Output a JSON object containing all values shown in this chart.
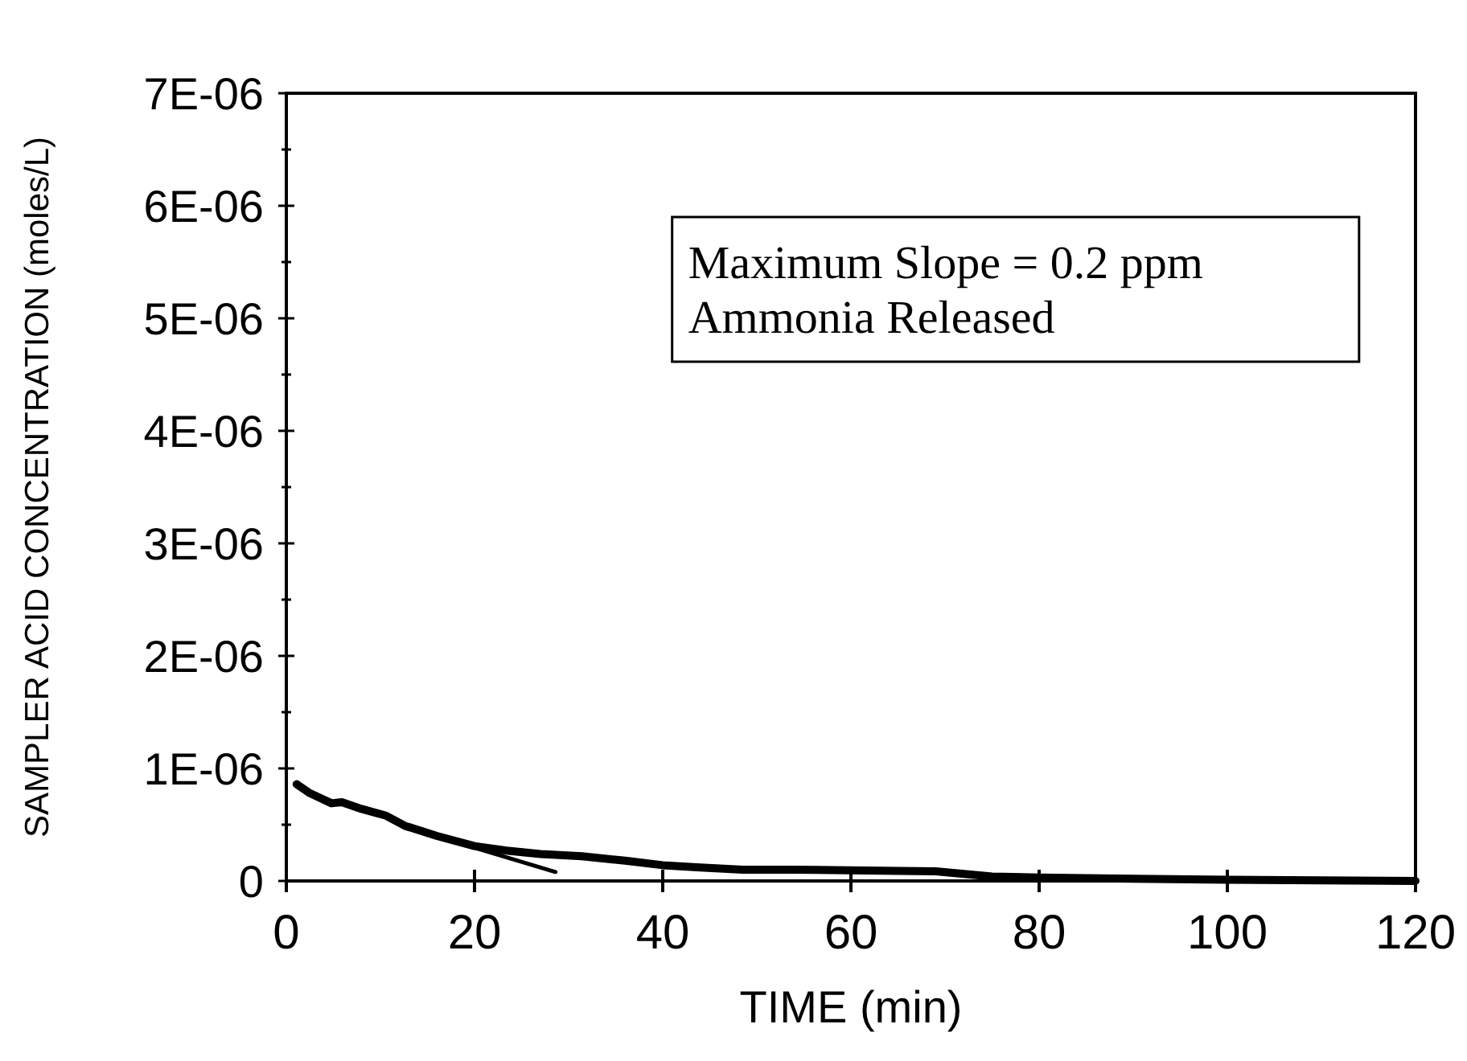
{
  "chart_data": {
    "type": "line",
    "xlabel": "TIME (min)",
    "ylabel": "SAMPLER ACID CONCENTRATION (moles/L)",
    "xlim": [
      0,
      120
    ],
    "xticks": [
      0,
      20,
      40,
      60,
      80,
      100,
      120
    ],
    "ylim": [
      0,
      7e-06
    ],
    "yticks": [
      {
        "value": 0,
        "label": "0"
      },
      {
        "value": 5e-07,
        "label": null
      },
      {
        "value": 1e-06,
        "label": "1E-06"
      },
      {
        "value": 1.5e-06,
        "label": null
      },
      {
        "value": 2e-06,
        "label": "2E-06"
      },
      {
        "value": 2.5e-06,
        "label": null
      },
      {
        "value": 3e-06,
        "label": "3E-06"
      },
      {
        "value": 3.5e-06,
        "label": null
      },
      {
        "value": 4e-06,
        "label": "4E-06"
      },
      {
        "value": 4.5e-06,
        "label": null
      },
      {
        "value": 5e-06,
        "label": "5E-06"
      },
      {
        "value": 5.5e-06,
        "label": null
      },
      {
        "value": 6e-06,
        "label": "6E-06"
      },
      {
        "value": 6.5e-06,
        "label": null
      },
      {
        "value": 7e-06,
        "label": "7E-06"
      }
    ],
    "grid": false,
    "marker": "none",
    "line_style": "solid",
    "series": [
      {
        "color": "#000000",
        "x": [
          1.1,
          2.5,
          4.8,
          5.9,
          8,
          10.6,
          12.6,
          16,
          20,
          23.4,
          27,
          31.4,
          36,
          40,
          44,
          48.5,
          54,
          59.8,
          65,
          69,
          75,
          80,
          90,
          100,
          110,
          120
        ],
        "values": [
          8.6e-07,
          7.8e-07,
          6.9e-07,
          7e-07,
          6.4e-07,
          5.8e-07,
          4.9e-07,
          4e-07,
          3.1e-07,
          2.7e-07,
          2.4e-07,
          2.2e-07,
          1.8e-07,
          1.4e-07,
          1.2e-07,
          1e-07,
          1e-07,
          9.5e-08,
          9e-08,
          8.5e-08,
          4e-08,
          3e-08,
          2e-08,
          1e-08,
          5e-09,
          0
        ]
      },
      {
        "color": "#000000",
        "x": [
          15,
          28.6
        ],
        "values": [
          4.2e-07,
          8e-08
        ]
      }
    ],
    "annotations": [
      "Maximum Slope = 0.2 ppm",
      "Ammonia Released"
    ]
  }
}
